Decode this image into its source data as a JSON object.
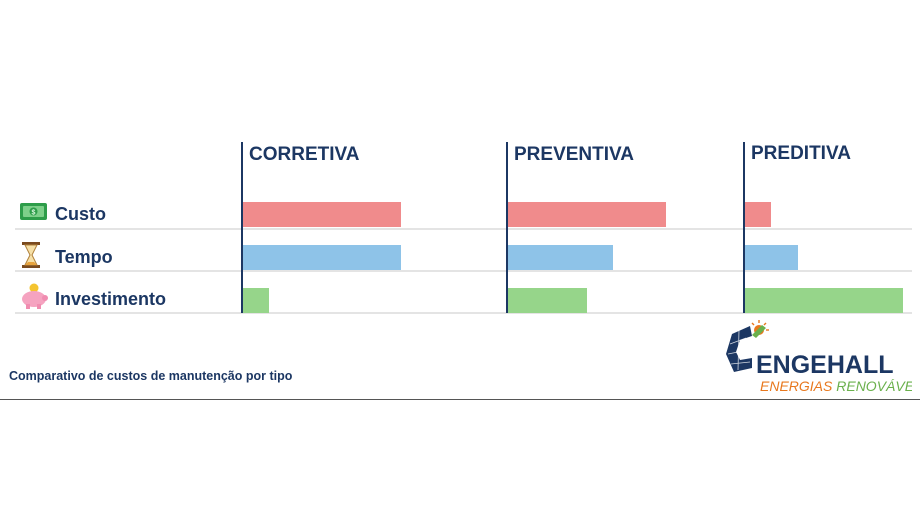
{
  "chart_data": {
    "type": "bar",
    "title": "",
    "columns": [
      "CORRETIVA",
      "PREVENTIVA",
      "PREDITIVA"
    ],
    "categories": [
      "Custo",
      "Tempo",
      "Investimento"
    ],
    "category_icons": [
      "money-icon",
      "hourglass-icon",
      "piggy-bank-icon"
    ],
    "series": [
      {
        "values": [
          0.78,
          0.78,
          0.13
        ],
        "color": "#f08b8c"
      },
      {
        "values": [
          0.78,
          0.52,
          0.26
        ],
        "color": "#8ec3e8"
      },
      {
        "values": [
          0.13,
          0.39,
          0.78
        ],
        "color": "#96d58a"
      }
    ],
    "grid": "horizontal-separators",
    "axis_color": "#1c3763"
  },
  "caption": "Comparativo de custos de manutenção por tipo",
  "logo": {
    "name": "ENGEHALL",
    "tagline_part1": "ENERGIAS ",
    "tagline_part2": "RENOVÁVEIS",
    "colors": {
      "navy": "#1c3763",
      "orange": "#e8781e",
      "green": "#6ab04c"
    }
  }
}
